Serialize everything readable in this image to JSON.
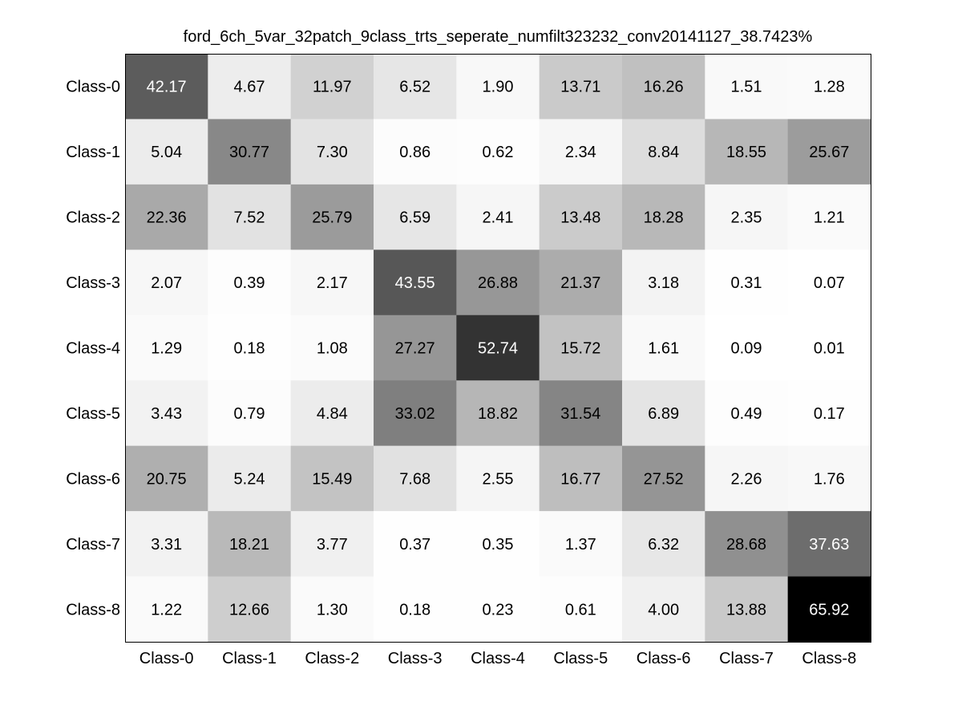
{
  "chart_data": {
    "type": "heatmap",
    "title": "ford_6ch_5var_32patch_9class_trts_seperate_numfilt323232_conv20141127_38.7423%",
    "row_labels": [
      "Class-0",
      "Class-1",
      "Class-2",
      "Class-3",
      "Class-4",
      "Class-5",
      "Class-6",
      "Class-7",
      "Class-8"
    ],
    "col_labels": [
      "Class-0",
      "Class-1",
      "Class-2",
      "Class-3",
      "Class-4",
      "Class-5",
      "Class-6",
      "Class-7",
      "Class-8"
    ],
    "cell_text": [
      [
        "42.17",
        "4.67",
        "11.97",
        "6.52",
        "1.90",
        "13.71",
        "16.26",
        "1.51",
        "1.28"
      ],
      [
        "5.04",
        "30.77",
        "7.30",
        "0.86",
        "0.62",
        "2.34",
        "8.84",
        "18.55",
        "25.67"
      ],
      [
        "22.36",
        "7.52",
        "25.79",
        "6.59",
        "2.41",
        "13.48",
        "18.28",
        "2.35",
        "1.21"
      ],
      [
        "2.07",
        "0.39",
        "2.17",
        "43.55",
        "26.88",
        "21.37",
        "3.18",
        "0.31",
        "0.07"
      ],
      [
        "1.29",
        "0.18",
        "1.08",
        "27.27",
        "52.74",
        "15.72",
        "1.61",
        "0.09",
        "0.01"
      ],
      [
        "3.43",
        "0.79",
        "4.84",
        "33.02",
        "18.82",
        "31.54",
        "6.89",
        "0.49",
        "0.17"
      ],
      [
        "20.75",
        "5.24",
        "15.49",
        "7.68",
        "2.55",
        "16.77",
        "27.52",
        "2.26",
        "1.76"
      ],
      [
        "3.31",
        "18.21",
        "3.77",
        "0.37",
        "0.35",
        "1.37",
        "6.32",
        "28.68",
        "37.63"
      ],
      [
        "1.22",
        "12.66",
        "1.30",
        "0.18",
        "0.23",
        "0.61",
        "4.00",
        "13.88",
        "65.92"
      ]
    ],
    "colormap": "gray-reversed",
    "color_range": [
      0,
      65.92
    ],
    "grid": false,
    "legend": "none"
  },
  "colors": {
    "background": "#ffffff",
    "axes_frame": "#000000",
    "label_text": "#000000",
    "cell_text_dark": "#000000",
    "cell_text_light": "#ffffff"
  }
}
